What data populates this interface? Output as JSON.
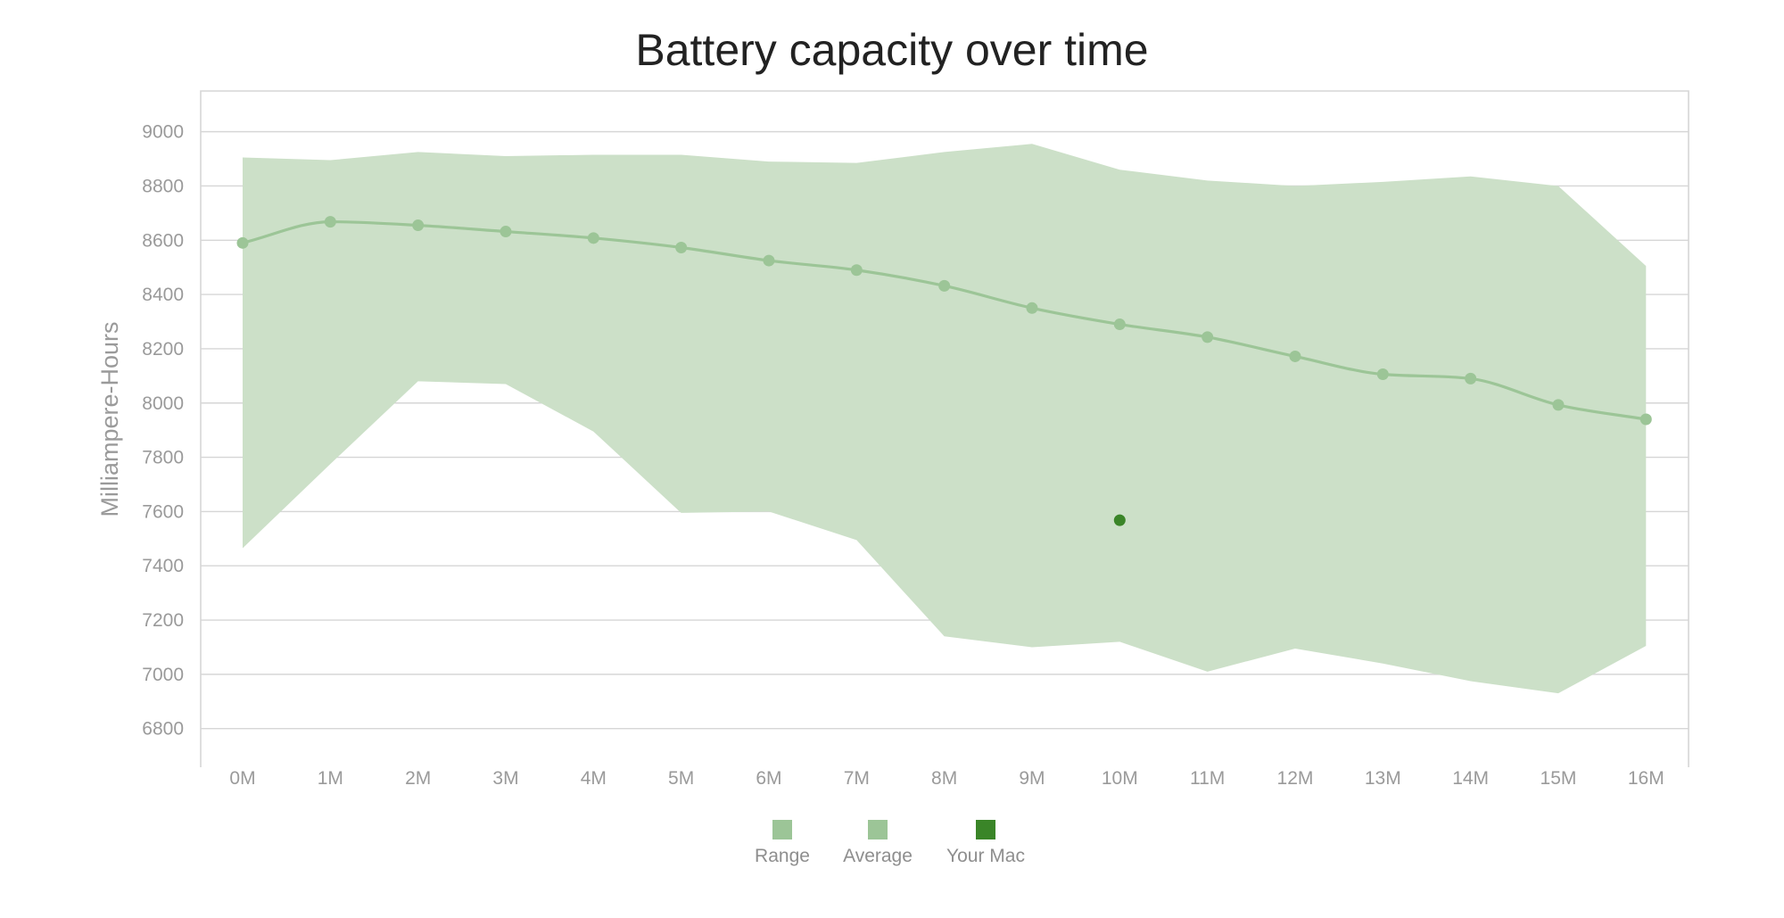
{
  "chart_data": {
    "type": "line",
    "title": "Battery capacity over time",
    "xlabel": "",
    "ylabel": "Milliampere-Hours",
    "categories": [
      "0M",
      "1M",
      "2M",
      "3M",
      "4M",
      "5M",
      "6M",
      "7M",
      "8M",
      "9M",
      "10M",
      "11M",
      "12M",
      "13M",
      "14M",
      "15M",
      "16M"
    ],
    "y_ticks": [
      6800,
      7000,
      7200,
      7400,
      7600,
      7800,
      8000,
      8200,
      8400,
      8600,
      8800,
      9000
    ],
    "ylim": [
      6730,
      9150
    ],
    "grid": true,
    "legend_position": "bottom-center",
    "series": [
      {
        "name": "Range",
        "kind": "area",
        "color": "#cce0c8",
        "upper": [
          8905,
          8895,
          8925,
          8910,
          8915,
          8915,
          8890,
          8885,
          8925,
          8955,
          8860,
          8820,
          8800,
          8815,
          8835,
          8800,
          8505
        ],
        "lower": [
          7465,
          7775,
          8080,
          8070,
          7895,
          7595,
          7600,
          7495,
          7140,
          7100,
          7120,
          7010,
          7095,
          7040,
          6975,
          6930,
          7105
        ]
      },
      {
        "name": "Average",
        "kind": "line",
        "color": "#9cc597",
        "values": [
          8590,
          8668,
          8655,
          8632,
          8608,
          8573,
          8525,
          8490,
          8432,
          8350,
          8290,
          8243,
          8172,
          8106,
          8090,
          7993,
          7940
        ]
      },
      {
        "name": "Your Mac",
        "kind": "point",
        "color": "#3a8528",
        "x": "10M",
        "value": 7568
      }
    ]
  }
}
